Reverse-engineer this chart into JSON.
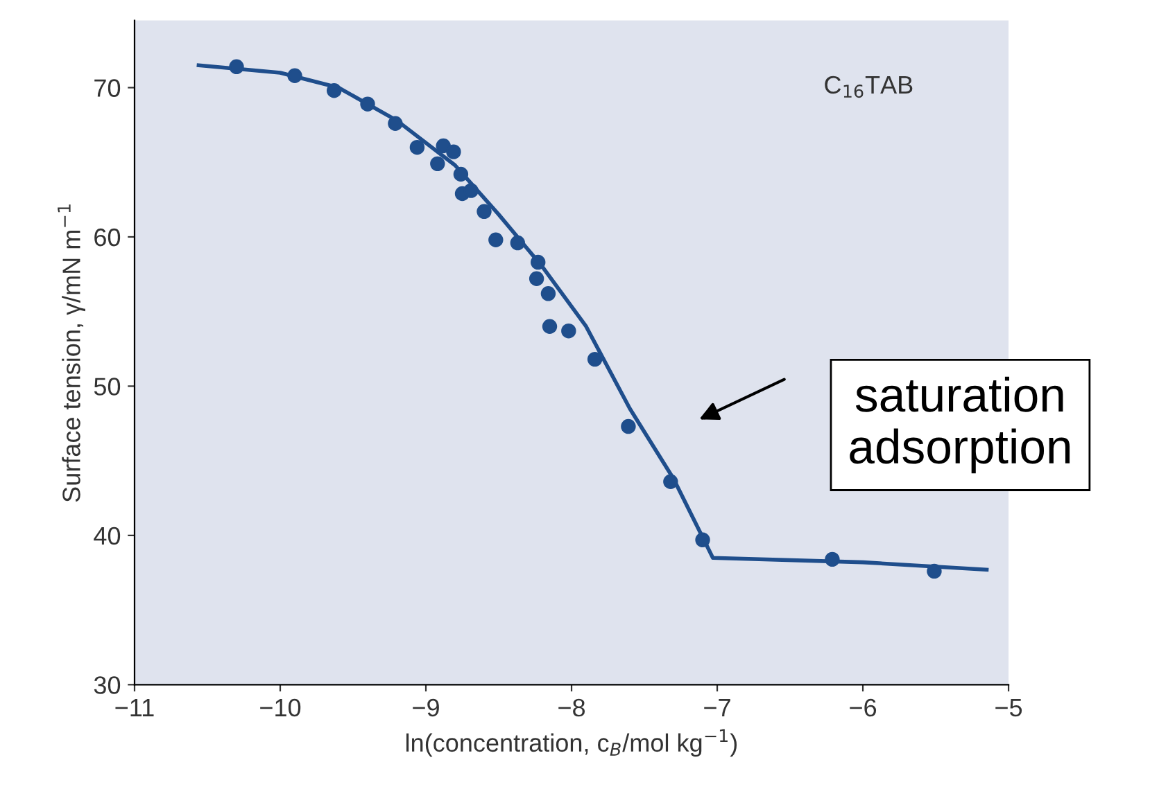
{
  "chart_data": {
    "type": "scatter",
    "xlabel": "ln(concentration, c$_{B}$/mol kg$^{−1}$)",
    "ylabel": "Surface tension, γ/mN m$^{−1}$",
    "xlim": [
      -11,
      -5
    ],
    "xticks": [
      {
        "value": -11,
        "label": "−11"
      },
      {
        "value": -10,
        "label": "−10"
      },
      {
        "value": -9,
        "label": "−9"
      },
      {
        "value": -8,
        "label": "−8"
      },
      {
        "value": -7,
        "label": "−7"
      },
      {
        "value": -6,
        "label": "−6"
      },
      {
        "value": -5,
        "label": "−5"
      }
    ],
    "ylim": [
      30,
      74.5
    ],
    "yticks": [
      30,
      40,
      50,
      60,
      70
    ],
    "grid": false,
    "legend": false,
    "marker": "circle",
    "annotations": [
      "C$_{16}$TAB",
      "saturation\nadsorption"
    ],
    "series": [
      {
        "color": "#1f4e8c",
        "x": [
          -10.3,
          -9.9,
          -9.63,
          -9.4,
          -9.21,
          -9.06,
          -8.92,
          -8.88,
          -8.81,
          -8.76,
          -8.75,
          -8.69,
          -8.6,
          -8.52,
          -8.37,
          -8.23,
          -8.24,
          -8.16,
          -8.15,
          -8.02,
          -7.84,
          -7.61,
          -7.32,
          -7.1,
          -6.21,
          -5.51
        ],
        "values": [
          71.4,
          70.8,
          69.8,
          68.9,
          67.6,
          66.0,
          64.9,
          66.1,
          65.7,
          64.2,
          62.9,
          63.1,
          61.7,
          59.8,
          59.6,
          58.3,
          57.2,
          56.2,
          54.0,
          53.7,
          51.8,
          47.3,
          43.6,
          39.7,
          38.4,
          37.6
        ]
      },
      {
        "type": "line",
        "color": "#1f4e8c",
        "line_style": "solid",
        "marker": "none",
        "x": [
          -10.56,
          -10.0,
          -9.6,
          -9.2,
          -8.8,
          -8.5,
          -8.2,
          -7.9,
          -7.6,
          -7.3,
          -7.03,
          -6.0,
          -5.15
        ],
        "values": [
          71.5,
          71.0,
          70.0,
          67.8,
          64.8,
          61.5,
          58.0,
          54.0,
          48.5,
          43.8,
          38.5,
          38.2,
          37.7
        ]
      }
    ]
  }
}
